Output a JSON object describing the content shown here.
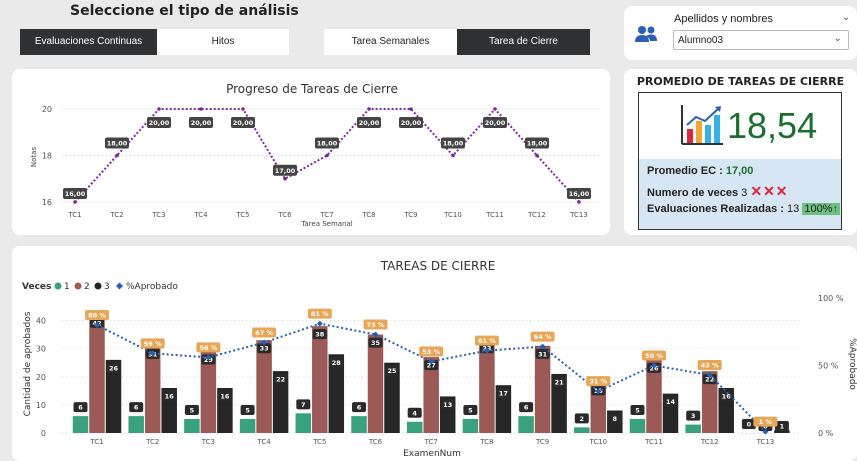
{
  "header": {
    "title": "Seleccione el tipo de análisis",
    "tabs": [
      {
        "label": "Evaluaciones Continuas",
        "selected": true
      },
      {
        "label": "Hitos",
        "selected": false
      },
      {
        "label": "Tarea Semanales",
        "selected": false
      },
      {
        "label": "Tarea de Cierre",
        "selected": true
      }
    ]
  },
  "slicer": {
    "label": "Apellidos y nombres",
    "value": "Alumno03",
    "icon": "people-icon"
  },
  "kpi": {
    "title": "PROMEDIO DE TAREAS DE CIERRE",
    "value": "18,54",
    "icon": "bar-chart-icon",
    "promedio_label": "Promedio EC : ",
    "promedio_value": "17,00",
    "veces_label": "Numero de veces ",
    "veces_value": "3",
    "veces_marks": "✕✕✕",
    "eval_label": "Evaluaciones Realizadas : ",
    "eval_value": "13",
    "eval_badge": "100%",
    "colors": {
      "marks": "#e0243c",
      "value": "#1b6e2f",
      "badge": "#6cc080",
      "box": "#d6e6f4"
    }
  },
  "chart_data": [
    {
      "type": "line",
      "title": "Progreso de Tareas de Cierre",
      "xlabel": "Tarea Semanal",
      "ylabel": "Notas",
      "categories": [
        "TC1",
        "TC2",
        "TC3",
        "TC4",
        "TC5",
        "TC6",
        "TC7",
        "TC8",
        "TC9",
        "TC10",
        "TC11",
        "TC12",
        "TC13"
      ],
      "values": [
        16,
        18,
        20,
        20,
        20,
        17,
        18,
        20,
        20,
        18,
        20,
        18,
        16
      ],
      "data_labels": [
        "16,00",
        "18,00",
        "20,00",
        "20,00",
        "20,00",
        "17,00",
        "18,00",
        "20,00",
        "20,00",
        "18,00",
        "20,00",
        "18,00",
        "16,00"
      ],
      "yticks": [
        "16",
        "18",
        "20"
      ],
      "ylim": [
        16,
        20
      ],
      "line_color": "#7b2a9a",
      "grid": true
    },
    {
      "type": "bar",
      "title": "TAREAS DE CIERRE",
      "xlabel": "ExamenNum",
      "ylabel": "Cantidad de aprobados",
      "y2label": "%Aprobado",
      "legend_title": "Veces",
      "legend_position": "top-left",
      "categories": [
        "TC1",
        "TC2",
        "TC3",
        "TC4",
        "TC5",
        "TC6",
        "TC7",
        "TC8",
        "TC9",
        "TC10",
        "TC11",
        "TC12",
        "TC13"
      ],
      "series": [
        {
          "name": "1",
          "color": "#3aa17e",
          "values": [
            6,
            6,
            5,
            5,
            7,
            6,
            4,
            5,
            6,
            2,
            5,
            3,
            0
          ]
        },
        {
          "name": "2",
          "color": "#9b5a56",
          "values": [
            42,
            31,
            29,
            33,
            38,
            35,
            27,
            33,
            31,
            18,
            26,
            22,
            0
          ]
        },
        {
          "name": "3",
          "color": "#262626",
          "values": [
            26,
            16,
            16,
            22,
            28,
            25,
            13,
            17,
            21,
            8,
            14,
            16,
            1
          ]
        }
      ],
      "line_series": {
        "name": "%Aprobado",
        "color": "#2b5fb4",
        "values": [
          80,
          59,
          56,
          67,
          81,
          73,
          53,
          61,
          64,
          31,
          50,
          43,
          1
        ]
      },
      "line_labels": [
        "80 %",
        "59 %",
        "56 %",
        "67 %",
        "81 %",
        "73 %",
        "53 %",
        "61 %",
        "64 %",
        "31 %",
        "50 %",
        "43 %",
        "1 %"
      ],
      "yticks": [
        "0",
        "10",
        "20",
        "30",
        "40"
      ],
      "y2ticks": [
        "0 %",
        "50 %",
        "100 %"
      ],
      "ylim": [
        0,
        48
      ],
      "y2lim": [
        0,
        100
      ],
      "grid": true
    }
  ]
}
